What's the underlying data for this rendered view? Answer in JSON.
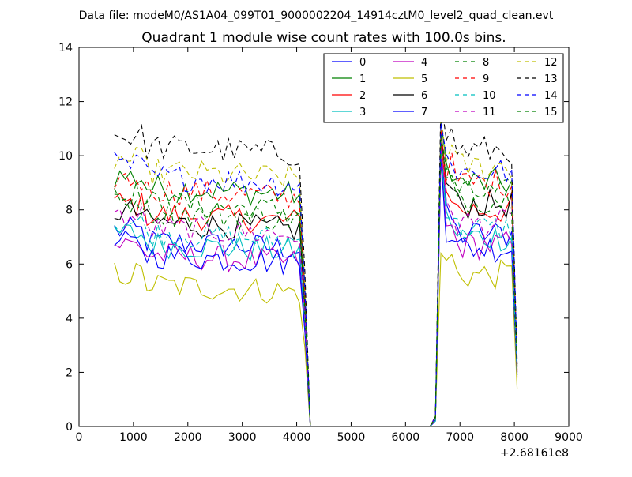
{
  "suptitle": "Data file: modeM0/AS1A04_099T01_9000002204_14914cztM0_level2_quad_clean.evt",
  "chart_data": {
    "type": "line",
    "title": "Quadrant 1 module wise count rates with 100.0s bins.",
    "xlabel": "",
    "ylabel": "",
    "x_offset_label": "+2.68161e8",
    "xlim": [
      0,
      9000
    ],
    "ylim": [
      0,
      14
    ],
    "xticks": [
      0,
      1000,
      2000,
      3000,
      4000,
      5000,
      6000,
      7000,
      8000,
      9000
    ],
    "yticks": [
      0,
      2,
      4,
      6,
      8,
      10,
      12,
      14
    ],
    "legend": {
      "placement": "top-right",
      "columns": 4
    },
    "seg1": {
      "x_start": 650,
      "x_end": 4150,
      "step": 100
    },
    "seg2": {
      "x_start": 6550,
      "x_end": 8050,
      "step": 100
    },
    "gap_x": [
      4250,
      4350,
      4450,
      4550,
      4650,
      4750,
      4850,
      4950,
      5050,
      5150,
      5250,
      5350,
      5450,
      5550,
      5650,
      5750,
      5850,
      5950,
      6050,
      6150,
      6250,
      6350,
      6450
    ],
    "gap_value": 0,
    "series": [
      {
        "name": "0",
        "color": "#0000ff",
        "dash": "solid",
        "level1": 6.9,
        "level2": 7.1,
        "peak": 10.2,
        "end": 2.0
      },
      {
        "name": "1",
        "color": "#008000",
        "dash": "solid",
        "level1": 8.9,
        "level2": 9.0,
        "peak": 11.3,
        "end": 2.3
      },
      {
        "name": "2",
        "color": "#ff0000",
        "dash": "solid",
        "level1": 7.9,
        "level2": 8.0,
        "peak": 10.5,
        "end": 2.1
      },
      {
        "name": "3",
        "color": "#00bfbf",
        "dash": "solid",
        "level1": 6.8,
        "level2": 7.0,
        "peak": 10.0,
        "end": 1.9
      },
      {
        "name": "4",
        "color": "#bf00bf",
        "dash": "solid",
        "level1": 6.4,
        "level2": 6.7,
        "peak": 9.8,
        "end": 1.8
      },
      {
        "name": "5",
        "color": "#bfbf00",
        "dash": "solid",
        "level1": 5.3,
        "level2": 5.6,
        "peak": 6.4,
        "end": 1.4
      },
      {
        "name": "6",
        "color": "#000000",
        "dash": "solid",
        "level1": 7.6,
        "level2": 8.2,
        "peak": 10.9,
        "end": 2.2
      },
      {
        "name": "7",
        "color": "#0000ff",
        "dash": "solid",
        "level1": 6.4,
        "level2": 6.6,
        "peak": 10.0,
        "end": 1.9
      },
      {
        "name": "8",
        "color": "#008000",
        "dash": "dashed",
        "level1": 8.3,
        "level2": 8.6,
        "peak": 10.8,
        "end": 2.2
      },
      {
        "name": "9",
        "color": "#ff0000",
        "dash": "dashed",
        "level1": 8.8,
        "level2": 9.0,
        "peak": 11.0,
        "end": 2.3
      },
      {
        "name": "10",
        "color": "#00bfbf",
        "dash": "dashed",
        "level1": 7.2,
        "level2": 7.3,
        "peak": 10.2,
        "end": 2.0
      },
      {
        "name": "11",
        "color": "#bf00bf",
        "dash": "dashed",
        "level1": 7.4,
        "level2": 7.5,
        "peak": 10.3,
        "end": 2.0
      },
      {
        "name": "12",
        "color": "#bfbf00",
        "dash": "dashed",
        "level1": 9.5,
        "level2": 9.6,
        "peak": 11.5,
        "end": 2.4
      },
      {
        "name": "13",
        "color": "#000000",
        "dash": "dashed",
        "level1": 10.4,
        "level2": 10.2,
        "peak": 12.1,
        "end": 2.5
      },
      {
        "name": "14",
        "color": "#0000ff",
        "dash": "dashed",
        "level1": 9.3,
        "level2": 9.4,
        "peak": 11.2,
        "end": 2.3
      },
      {
        "name": "15",
        "color": "#008000",
        "dash": "dashed",
        "level1": 8.0,
        "level2": 8.4,
        "peak": 10.6,
        "end": 2.1
      }
    ]
  }
}
